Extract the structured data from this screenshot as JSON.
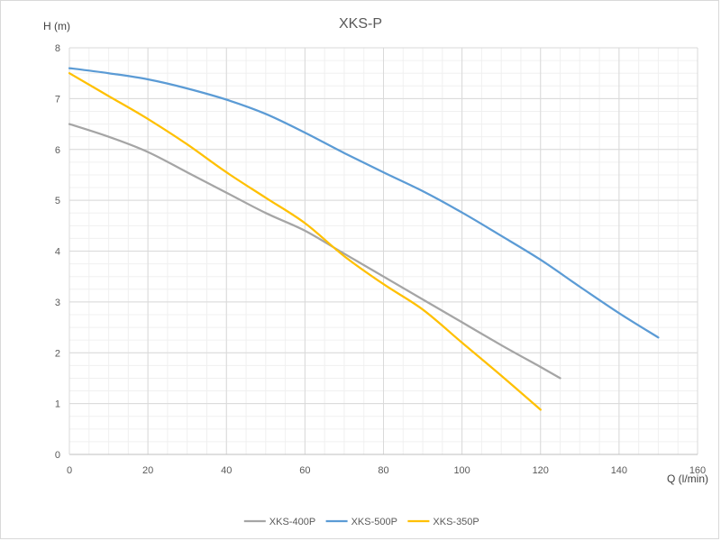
{
  "chart_data": {
    "type": "line",
    "title": "XKS-P",
    "xlabel": "Q (l/min)",
    "ylabel": "H (m)",
    "xlim": [
      0,
      160
    ],
    "ylim": [
      0,
      8
    ],
    "x_ticks": [
      0,
      20,
      40,
      60,
      80,
      100,
      120,
      140,
      160
    ],
    "y_ticks": [
      0,
      1,
      2,
      3,
      4,
      5,
      6,
      7,
      8
    ],
    "grid": true,
    "minor_grid": true,
    "legend_position": "bottom",
    "series": [
      {
        "name": "XKS-400P",
        "color": "#a5a5a5",
        "points": [
          [
            0,
            6.5
          ],
          [
            10,
            6.25
          ],
          [
            20,
            5.95
          ],
          [
            30,
            5.55
          ],
          [
            40,
            5.15
          ],
          [
            50,
            4.75
          ],
          [
            60,
            4.4
          ],
          [
            70,
            3.95
          ],
          [
            80,
            3.5
          ],
          [
            90,
            3.05
          ],
          [
            100,
            2.6
          ],
          [
            110,
            2.15
          ],
          [
            120,
            1.72
          ],
          [
            125,
            1.5
          ]
        ]
      },
      {
        "name": "XKS-500P",
        "color": "#5b9bd5",
        "points": [
          [
            0,
            7.6
          ],
          [
            10,
            7.5
          ],
          [
            20,
            7.38
          ],
          [
            30,
            7.2
          ],
          [
            40,
            6.98
          ],
          [
            50,
            6.7
          ],
          [
            60,
            6.33
          ],
          [
            70,
            5.93
          ],
          [
            80,
            5.55
          ],
          [
            90,
            5.18
          ],
          [
            100,
            4.76
          ],
          [
            110,
            4.3
          ],
          [
            120,
            3.83
          ],
          [
            130,
            3.3
          ],
          [
            140,
            2.78
          ],
          [
            150,
            2.3
          ]
        ]
      },
      {
        "name": "XKS-350P",
        "color": "#ffc000",
        "points": [
          [
            0,
            7.5
          ],
          [
            10,
            7.05
          ],
          [
            20,
            6.6
          ],
          [
            30,
            6.1
          ],
          [
            40,
            5.55
          ],
          [
            50,
            5.05
          ],
          [
            60,
            4.55
          ],
          [
            70,
            3.9
          ],
          [
            80,
            3.35
          ],
          [
            90,
            2.85
          ],
          [
            100,
            2.2
          ],
          [
            110,
            1.55
          ],
          [
            120,
            0.88
          ]
        ]
      }
    ]
  }
}
